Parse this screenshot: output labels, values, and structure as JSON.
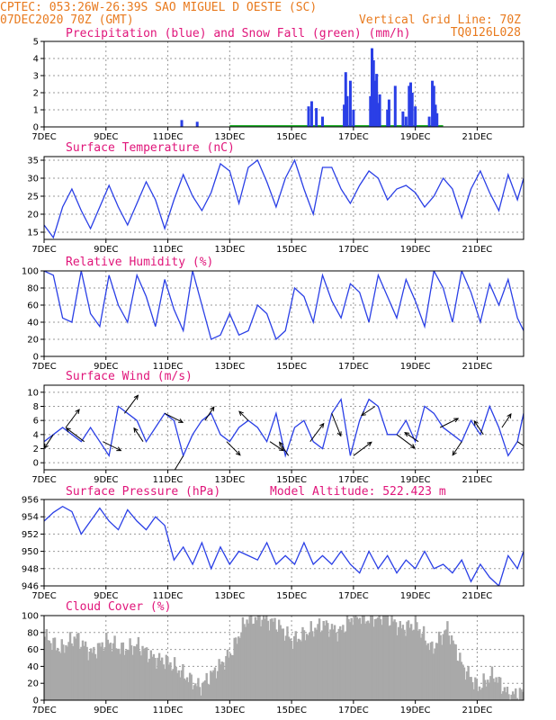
{
  "header": {
    "line1": "CPTEC:  053:26W-26:39S  SAO MIGUEL D OESTE (SC)",
    "line2_left": "07DEC2020 70Z (GMT)",
    "line2_right": "Vertical Grid Line: 70Z",
    "line3_right": "TQ0126L028",
    "orange": "#e87a1e",
    "magenta": "#e0157a"
  },
  "model_altitude": "Model Altitude: 522.423 m",
  "x_labels": [
    "7DEC",
    "9DEC",
    "11DEC",
    "13DEC",
    "15DEC",
    "17DEC",
    "19DEC",
    "21DEC"
  ],
  "x_label_days": [
    0,
    2,
    4,
    6,
    8,
    10,
    12,
    14
  ],
  "x_range_days": [
    0,
    15.5
  ],
  "colors": {
    "line": "#2a3fe6",
    "precip": "#2a3fe6",
    "snow": "#20b02a",
    "cloud": "#a9a9a9",
    "grid": "#9a9a9a"
  },
  "chart_data": [
    {
      "id": "precip",
      "title": "Precipitation (blue) and Snow Fall (green) (mm/h)",
      "type": "bar",
      "ylim": [
        0,
        5
      ],
      "yticks": [
        0,
        1,
        2,
        3,
        4,
        5
      ],
      "series": [
        {
          "name": "Precipitation",
          "color": "blue",
          "x": [
            4.45,
            4.95,
            8.55,
            8.65,
            8.8,
            9.0,
            9.7,
            9.75,
            9.8,
            9.9,
            10.0,
            10.55,
            10.6,
            10.65,
            10.7,
            10.75,
            10.8,
            10.85,
            11.1,
            11.15,
            11.35,
            11.6,
            11.7,
            11.8,
            11.85,
            11.9,
            12.0,
            12.45,
            12.55,
            12.6,
            12.65,
            12.7
          ],
          "values": [
            0.4,
            0.3,
            1.2,
            1.5,
            1.1,
            0.6,
            1.3,
            3.2,
            1.8,
            2.7,
            1.0,
            1.8,
            4.6,
            3.9,
            2.7,
            3.1,
            1.4,
            1.9,
            1.0,
            1.6,
            2.4,
            0.9,
            0.6,
            2.4,
            2.6,
            2.0,
            1.2,
            0.6,
            2.7,
            2.4,
            1.3,
            0.8
          ]
        },
        {
          "name": "Snow Fall",
          "color": "green",
          "x": [],
          "values": []
        }
      ]
    },
    {
      "id": "temperature",
      "title": "Surface Temperature (nC)",
      "type": "line",
      "ylim": [
        13,
        36
      ],
      "yticks": [
        15,
        20,
        25,
        30,
        35
      ],
      "x": [
        0,
        0.3,
        0.6,
        0.9,
        1.2,
        1.5,
        1.8,
        2.1,
        2.4,
        2.7,
        3.0,
        3.3,
        3.6,
        3.9,
        4.2,
        4.5,
        4.8,
        5.1,
        5.4,
        5.7,
        6.0,
        6.3,
        6.6,
        6.9,
        7.2,
        7.5,
        7.8,
        8.1,
        8.4,
        8.7,
        9.0,
        9.3,
        9.6,
        9.9,
        10.2,
        10.5,
        10.8,
        11.1,
        11.4,
        11.7,
        12.0,
        12.3,
        12.6,
        12.9,
        13.2,
        13.5,
        13.8,
        14.1,
        14.4,
        14.7,
        15.0,
        15.3,
        15.5
      ],
      "y": [
        17,
        13.5,
        22,
        27,
        21,
        16,
        22,
        28,
        22,
        17,
        23,
        29,
        24,
        16,
        24,
        31,
        25,
        21,
        26,
        34,
        32,
        23,
        33,
        35,
        29,
        22,
        30,
        35,
        27,
        20,
        33,
        33,
        27,
        23,
        28,
        32,
        30,
        24,
        27,
        28,
        26,
        22,
        25,
        30,
        27,
        19,
        27,
        32,
        26,
        21,
        31,
        24,
        30
      ]
    },
    {
      "id": "humidity",
      "title": "Relative Humidity (%)",
      "type": "line",
      "ylim": [
        0,
        100
      ],
      "yticks": [
        0,
        20,
        40,
        60,
        80,
        100
      ],
      "x": [
        0,
        0.3,
        0.6,
        0.9,
        1.2,
        1.5,
        1.8,
        2.1,
        2.4,
        2.7,
        3.0,
        3.3,
        3.6,
        3.9,
        4.2,
        4.5,
        4.8,
        5.1,
        5.4,
        5.7,
        6.0,
        6.3,
        6.6,
        6.9,
        7.2,
        7.5,
        7.8,
        8.1,
        8.4,
        8.7,
        9.0,
        9.3,
        9.6,
        9.9,
        10.2,
        10.5,
        10.8,
        11.1,
        11.4,
        11.7,
        12.0,
        12.3,
        12.6,
        12.9,
        13.2,
        13.5,
        13.8,
        14.1,
        14.4,
        14.7,
        15.0,
        15.3,
        15.5
      ],
      "y": [
        100,
        95,
        45,
        40,
        100,
        50,
        35,
        95,
        60,
        40,
        95,
        70,
        35,
        90,
        55,
        30,
        100,
        60,
        20,
        25,
        50,
        25,
        30,
        60,
        50,
        20,
        30,
        80,
        70,
        40,
        95,
        65,
        45,
        85,
        75,
        40,
        95,
        70,
        45,
        90,
        65,
        35,
        100,
        80,
        40,
        100,
        75,
        40,
        85,
        60,
        90,
        45,
        30
      ]
    },
    {
      "id": "wind",
      "title": "Surface Wind (m/s)",
      "type": "line",
      "ylim": [
        -1,
        11
      ],
      "yticks": [
        0,
        2,
        4,
        6,
        8,
        10
      ],
      "x": [
        0,
        0.3,
        0.6,
        0.9,
        1.2,
        1.5,
        1.8,
        2.1,
        2.4,
        2.7,
        3.0,
        3.3,
        3.6,
        3.9,
        4.2,
        4.5,
        4.8,
        5.1,
        5.4,
        5.7,
        6.0,
        6.3,
        6.6,
        6.9,
        7.2,
        7.5,
        7.8,
        8.1,
        8.4,
        8.7,
        9.0,
        9.3,
        9.6,
        9.9,
        10.2,
        10.5,
        10.8,
        11.1,
        11.4,
        11.7,
        12.0,
        12.3,
        12.6,
        12.9,
        13.2,
        13.5,
        13.8,
        14.1,
        14.4,
        14.7,
        15.0,
        15.3,
        15.5
      ],
      "y": [
        3,
        4,
        5,
        4,
        3,
        5,
        3,
        1,
        8,
        7,
        6,
        3,
        5,
        7,
        6,
        1,
        4,
        6,
        7,
        4,
        3,
        5,
        6,
        5,
        3,
        7,
        1,
        5,
        6,
        3,
        2,
        7,
        9,
        1,
        6,
        9,
        8,
        4,
        4,
        6,
        3,
        8,
        7,
        5,
        4,
        3,
        6,
        4,
        8,
        5,
        1,
        3,
        7
      ],
      "arrows": {
        "x": [
          0.3,
          0.7,
          1.3,
          1.9,
          2.6,
          3.2,
          3.9,
          4.5,
          5.2,
          5.9,
          6.6,
          7.3,
          7.9,
          8.6,
          9.3,
          10.0,
          10.7,
          11.4,
          12.1,
          12.8,
          13.5,
          14.2,
          14.8,
          15.3
        ],
        "u": [
          -2,
          3,
          -4,
          4,
          3,
          -2,
          4,
          -3,
          2,
          3,
          -2,
          3,
          -2,
          3,
          2,
          4,
          -3,
          4,
          -3,
          4,
          -2,
          -2,
          2,
          3
        ],
        "v": [
          -3,
          4,
          3,
          -2,
          4,
          3,
          -2,
          -5,
          3,
          -3,
          2,
          -2,
          3,
          4,
          -5,
          3,
          -2,
          -3,
          2,
          2,
          -3,
          3,
          3,
          -2
        ]
      }
    },
    {
      "id": "pressure",
      "title": "Surface Pressure (hPa)",
      "type": "line",
      "ylim": [
        946,
        956
      ],
      "yticks": [
        946,
        948,
        950,
        952,
        954,
        956
      ],
      "x": [
        0,
        0.3,
        0.6,
        0.9,
        1.2,
        1.5,
        1.8,
        2.1,
        2.4,
        2.7,
        3.0,
        3.3,
        3.6,
        3.9,
        4.2,
        4.5,
        4.8,
        5.1,
        5.4,
        5.7,
        6.0,
        6.3,
        6.6,
        6.9,
        7.2,
        7.5,
        7.8,
        8.1,
        8.4,
        8.7,
        9.0,
        9.3,
        9.6,
        9.9,
        10.2,
        10.5,
        10.8,
        11.1,
        11.4,
        11.7,
        12.0,
        12.3,
        12.6,
        12.9,
        13.2,
        13.5,
        13.8,
        14.1,
        14.4,
        14.7,
        15.0,
        15.3,
        15.5
      ],
      "y": [
        953.5,
        954.5,
        955.2,
        954.6,
        952.0,
        953.5,
        955.0,
        953.5,
        952.5,
        954.8,
        953.5,
        952.5,
        954.0,
        953.0,
        949.0,
        950.5,
        948.5,
        951.0,
        948.0,
        950.5,
        948.5,
        950.0,
        949.5,
        949.0,
        951.0,
        948.5,
        949.5,
        948.5,
        951.0,
        948.5,
        949.5,
        948.5,
        950.0,
        948.5,
        947.5,
        950.0,
        948.0,
        949.5,
        947.5,
        949.0,
        948.0,
        950.0,
        948.0,
        948.5,
        947.5,
        949.0,
        946.5,
        948.5,
        947.0,
        946.0,
        949.5,
        948.0,
        950.0
      ]
    },
    {
      "id": "cloud",
      "title": "Cloud Cover (%)",
      "type": "area",
      "ylim": [
        0,
        100
      ],
      "yticks": [
        0,
        20,
        40,
        60,
        80,
        100
      ],
      "x": [
        0,
        0.5,
        1.0,
        1.5,
        2.0,
        2.5,
        3.0,
        3.5,
        4.0,
        4.5,
        5.0,
        5.5,
        6.0,
        6.5,
        7.0,
        7.5,
        8.0,
        8.5,
        9.0,
        9.5,
        10.0,
        10.5,
        11.0,
        11.5,
        12.0,
        12.5,
        13.0,
        13.5,
        14.0,
        14.5,
        15.0,
        15.5
      ],
      "y": [
        75,
        60,
        75,
        55,
        70,
        60,
        65,
        50,
        45,
        30,
        15,
        35,
        55,
        95,
        98,
        90,
        70,
        80,
        90,
        80,
        100,
        95,
        100,
        85,
        90,
        60,
        85,
        40,
        15,
        30,
        5,
        10
      ]
    }
  ]
}
